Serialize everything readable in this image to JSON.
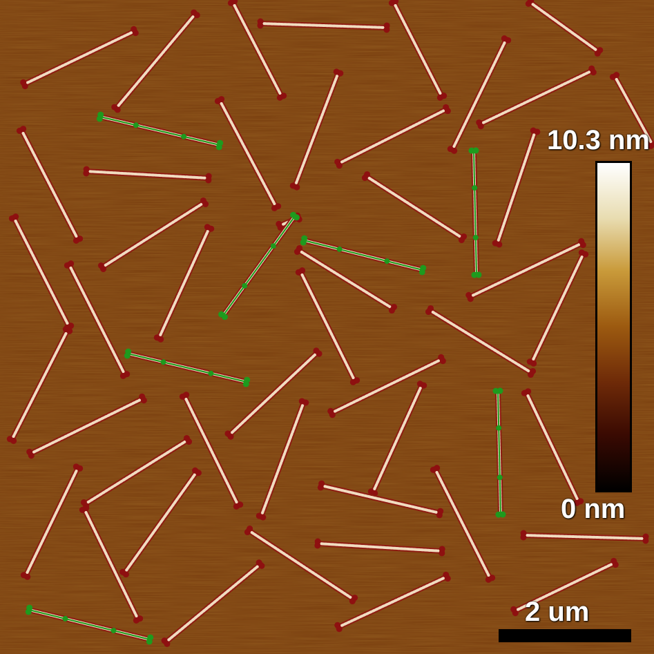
{
  "colorbar": {
    "max_label": "10.3 nm",
    "min_label": "0 nm",
    "colors": [
      "#000000",
      "#3a0a02",
      "#6e2a08",
      "#9c5a10",
      "#c99a3a",
      "#e8dcb0",
      "#ffffff"
    ]
  },
  "scalebar": {
    "label": "2 um"
  },
  "colors": {
    "background": "#7a3f0f",
    "rod_fill": "#f0dcc0",
    "rod_outline": "#8e1c12",
    "endpoint_red": "#8e1010",
    "highlight_green": "#1e9a1e"
  },
  "rods": {
    "red": [
      [
        35,
        122,
        195,
        45
      ],
      [
        168,
        157,
        283,
        20
      ],
      [
        337,
        3,
        408,
        140
      ],
      [
        377,
        34,
        560,
        40
      ],
      [
        570,
        3,
        640,
        140
      ],
      [
        767,
        3,
        867,
        75
      ],
      [
        31,
        188,
        113,
        347
      ],
      [
        125,
        248,
        302,
        258
      ],
      [
        318,
        145,
        400,
        300
      ],
      [
        427,
        270,
        490,
        105
      ],
      [
        490,
        237,
        647,
        158
      ],
      [
        655,
        217,
        733,
        57
      ],
      [
        695,
        180,
        858,
        102
      ],
      [
        890,
        110,
        945,
        210
      ],
      [
        148,
        387,
        296,
        293
      ],
      [
        20,
        315,
        100,
        473
      ],
      [
        100,
        383,
        181,
        543
      ],
      [
        230,
        490,
        303,
        330
      ],
      [
        405,
        327,
        432,
        315
      ],
      [
        432,
        362,
        569,
        447
      ],
      [
        530,
        255,
        670,
        345
      ],
      [
        720,
        353,
        775,
        190
      ],
      [
        680,
        430,
        843,
        352
      ],
      [
        622,
        449,
        770,
        540
      ],
      [
        770,
        525,
        845,
        367
      ],
      [
        435,
        393,
        514,
        552
      ],
      [
        332,
        630,
        460,
        510
      ],
      [
        17,
        637,
        98,
        478
      ],
      [
        44,
        657,
        207,
        577
      ],
      [
        267,
        573,
        345,
        732
      ],
      [
        480,
        598,
        640,
        520
      ],
      [
        378,
        748,
        440,
        582
      ],
      [
        540,
        713,
        611,
        557
      ],
      [
        465,
        703,
        637,
        743
      ],
      [
        630,
        679,
        710,
        838
      ],
      [
        762,
        568,
        838,
        727
      ],
      [
        123,
        730,
        272,
        637
      ],
      [
        37,
        834,
        113,
        677
      ],
      [
        180,
        830,
        285,
        683
      ],
      [
        122,
        737,
        200,
        897
      ],
      [
        360,
        768,
        512,
        868
      ],
      [
        460,
        787,
        640,
        798
      ],
      [
        758,
        775,
        935,
        780
      ],
      [
        240,
        930,
        377,
        817
      ],
      [
        490,
        908,
        647,
        835
      ],
      [
        745,
        885,
        890,
        815
      ]
    ],
    "green": [
      [
        145,
        169,
        318,
        210
      ],
      [
        323,
        457,
        427,
        313
      ],
      [
        440,
        348,
        612,
        391
      ],
      [
        686,
        218,
        690,
        398
      ],
      [
        185,
        512,
        357,
        553
      ],
      [
        721,
        566,
        725,
        745
      ],
      [
        42,
        883,
        217,
        926
      ]
    ]
  }
}
